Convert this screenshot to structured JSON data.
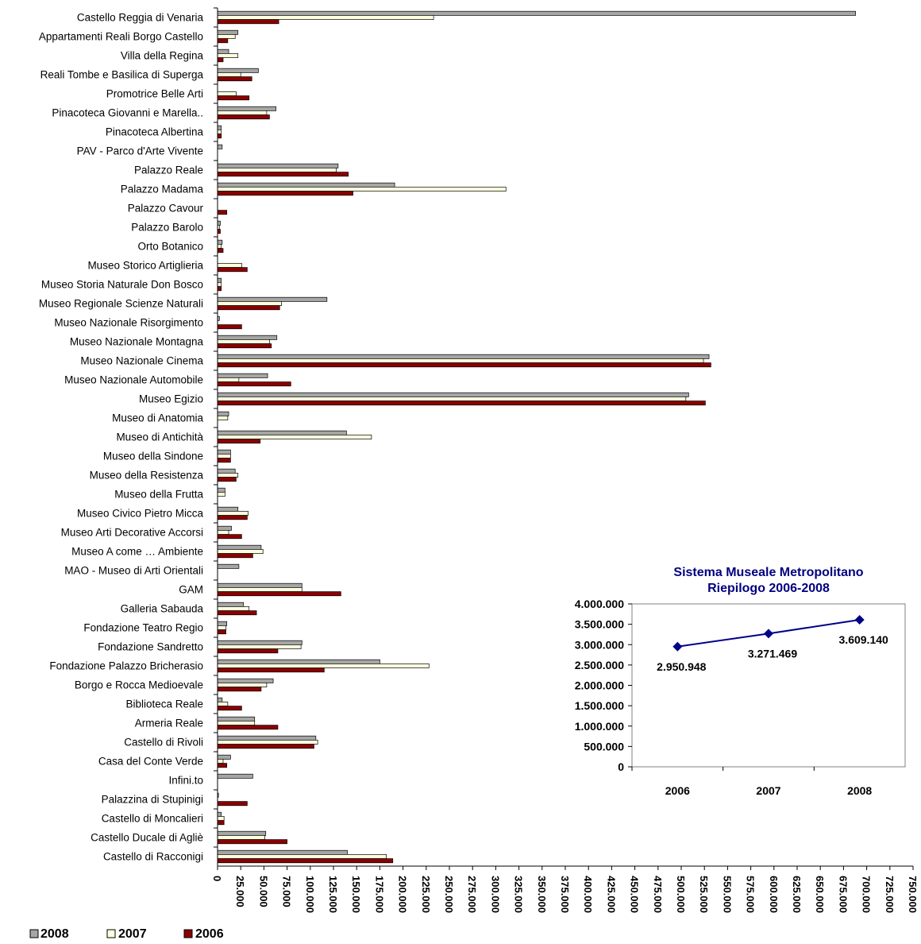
{
  "chart_data": [
    {
      "type": "bar",
      "orientation": "horizontal",
      "title": "",
      "xlabel": "",
      "ylabel": "",
      "xlim": [
        0,
        750000
      ],
      "x_ticks": [
        "0",
        "25.000",
        "50.000",
        "75.000",
        "100.000",
        "125.000",
        "150.000",
        "175.000",
        "200.000",
        "225.000",
        "250.000",
        "275.000",
        "300.000",
        "325.000",
        "350.000",
        "375.000",
        "400.000",
        "425.000",
        "450.000",
        "475.000",
        "500.000",
        "525.000",
        "550.000",
        "575.000",
        "600.000",
        "625.000",
        "650.000",
        "675.000",
        "700.000",
        "725.000",
        "750.000"
      ],
      "grid": false,
      "legend_position": "bottom-left",
      "categories": [
        "Castello Reggia di Venaria",
        "Appartamenti Reali Borgo Castello",
        "Villa della Regina",
        "Reali Tombe e Basilica di Superga",
        "Promotrice Belle Arti",
        "Pinacoteca Giovanni e Marella..",
        "Pinacoteca Albertina",
        "PAV - Parco d'Arte Vivente",
        "Palazzo Reale",
        "Palazzo Madama",
        "Palazzo Cavour",
        "Palazzo Barolo",
        "Orto Botanico",
        "Museo Storico Artiglieria",
        "Museo Storia Naturale Don Bosco",
        "Museo Regionale Scienze Naturali",
        "Museo Nazionale Risorgimento",
        "Museo Nazionale Montagna",
        "Museo Nazionale Cinema",
        "Museo Nazionale Automobile",
        "Museo Egizio",
        "Museo di Anatomia",
        "Museo di Antichità",
        "Museo della Sindone",
        "Museo della Resistenza",
        "Museo della Frutta",
        "Museo Civico Pietro Micca",
        "Museo Arti Decorative Accorsi",
        "Museo A come … Ambiente",
        "MAO - Museo di Arti Orientali",
        "GAM",
        "Galleria Sabauda",
        "Fondazione Teatro Regio",
        "Fondazione Sandretto",
        "Fondazione Palazzo Bricherasio",
        "Borgo e Rocca Medioevale",
        "Biblioteca Reale",
        "Armeria Reale",
        "Castello di Rivoli",
        "Casa del Conte Verde",
        "Infini.to",
        "Palazzina di Stupinigi",
        "Castello di Moncalieri",
        "Castello Ducale di Agliè",
        "Castello di Racconigi"
      ],
      "series": [
        {
          "name": "2008",
          "color": "#a6a6a6",
          "values": [
            688000,
            22000,
            12000,
            44000,
            0,
            63000,
            4000,
            5000,
            130000,
            191000,
            0,
            3000,
            5000,
            0,
            4000,
            118000,
            2000,
            64000,
            530000,
            54000,
            508000,
            12000,
            139000,
            14000,
            19000,
            8000,
            22000,
            15000,
            47000,
            23000,
            91000,
            28000,
            10000,
            91000,
            175000,
            60000,
            5000,
            40000,
            106000,
            14000,
            38000,
            1000,
            4000,
            52000,
            140000
          ]
        },
        {
          "name": "2007",
          "color": "#ffffe0",
          "values": [
            233000,
            19000,
            22000,
            25000,
            20000,
            53000,
            4000,
            0,
            128000,
            311000,
            0,
            2000,
            4000,
            26000,
            4000,
            69000,
            0,
            56000,
            524000,
            23000,
            505000,
            11000,
            166000,
            14000,
            22000,
            8000,
            33000,
            12000,
            49000,
            0,
            91000,
            34000,
            9000,
            90000,
            228000,
            53000,
            11000,
            40000,
            108000,
            6000,
            0,
            0,
            7000,
            51000,
            182000
          ]
        },
        {
          "name": "2006",
          "color": "#8b0000",
          "values": [
            66000,
            11000,
            6000,
            37000,
            34000,
            56000,
            4000,
            0,
            141000,
            146000,
            10000,
            3000,
            6000,
            32000,
            4000,
            67000,
            26000,
            58000,
            532000,
            79000,
            526000,
            0,
            46000,
            14000,
            20000,
            0,
            32000,
            26000,
            38000,
            0,
            133000,
            42000,
            9000,
            65000,
            115000,
            47000,
            26000,
            65000,
            104000,
            10000,
            0,
            32000,
            7000,
            75000,
            189000
          ]
        }
      ]
    },
    {
      "type": "line",
      "title_lines": [
        "Sistema Museale Metropolitano",
        "Riepilogo 2006-2008"
      ],
      "x": [
        "2006",
        "2007",
        "2008"
      ],
      "values": [
        2950948,
        3271469,
        3609140
      ],
      "data_labels": [
        "2.950.948",
        "3.271.469",
        "3.609.140"
      ],
      "ylim": [
        0,
        4000000
      ],
      "y_ticks": [
        "0",
        "500.000",
        "1.000.000",
        "1.500.000",
        "2.000.000",
        "2.500.000",
        "3.000.000",
        "3.500.000",
        "4.000.000"
      ],
      "line_color": "#00008b",
      "marker": "diamond",
      "grid": false
    }
  ]
}
